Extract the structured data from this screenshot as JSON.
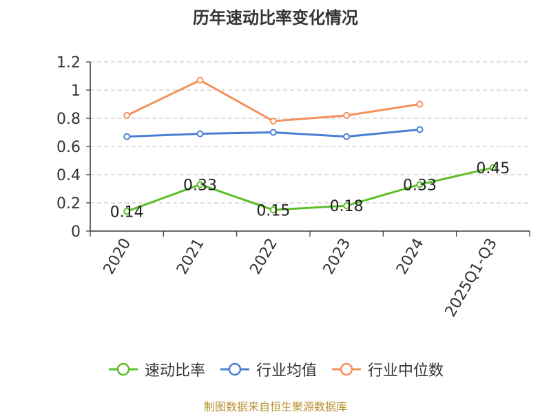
{
  "chart_data": {
    "type": "line",
    "title": "历年速动比率变化情况",
    "categories": [
      "2020",
      "2021",
      "2022",
      "2023",
      "2024",
      "2025Q1-Q3"
    ],
    "ylim": [
      0,
      1.2
    ],
    "yticks": [
      "0",
      "0.2",
      "0.4",
      "0.6",
      "0.8",
      "1",
      "1.2"
    ],
    "grid": true,
    "legend_position": "bottom",
    "series": [
      {
        "name": "速动比率",
        "color": "#5cbf2a",
        "values": [
          0.14,
          0.33,
          0.15,
          0.18,
          0.33,
          0.45
        ],
        "labels": [
          "0.14",
          "0.33",
          "0.15",
          "0.18",
          "0.33",
          "0.45"
        ]
      },
      {
        "name": "行业均值",
        "color": "#4a7fd4",
        "values": [
          0.67,
          0.69,
          0.7,
          0.67,
          0.72,
          null
        ]
      },
      {
        "name": "行业中位数",
        "color": "#f5905a",
        "values": [
          0.82,
          1.07,
          0.78,
          0.82,
          0.9,
          null
        ]
      }
    ]
  },
  "source": "制图数据来自恒生聚源数据库"
}
